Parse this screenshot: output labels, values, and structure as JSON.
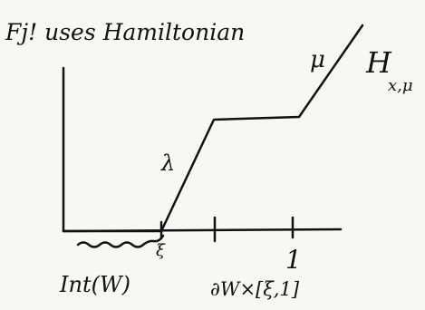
{
  "header": {
    "title": "Fj! uses Hamiltonian"
  },
  "graph": {
    "curve_label_upper": "μ",
    "curve_label_lower": "λ",
    "function_name": "H",
    "function_subscript": "x,μ"
  },
  "axis": {
    "xi_label": "ξ",
    "one_label": "1",
    "interior_label": "Int(W)",
    "collar_label": "∂W×[ξ,1]"
  }
}
